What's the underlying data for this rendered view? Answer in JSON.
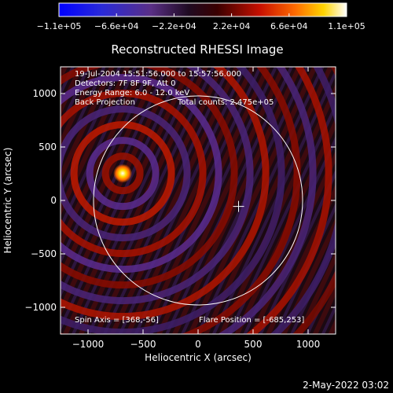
{
  "chart_data": {
    "type": "heatmap",
    "title": "Reconstructed RHESSI Image",
    "xlabel": "Heliocentric X (arcsec)",
    "ylabel": "Heliocentric Y (arcsec)",
    "xlim": [
      -1250,
      1250
    ],
    "ylim": [
      -1250,
      1250
    ],
    "x_ticks": [
      -1000,
      -500,
      0,
      500,
      1000
    ],
    "y_ticks": [
      -1000,
      -500,
      0,
      500,
      1000
    ],
    "x_tick_labels": [
      "−1000",
      "−500",
      "0",
      "500",
      "1000"
    ],
    "y_tick_labels": [
      "−1000",
      "−500",
      "0",
      "500",
      "1000"
    ],
    "colorbar": {
      "range": [
        -110000,
        110000
      ],
      "ticks": [
        -110000,
        -66000,
        -22000,
        22000,
        66000,
        110000
      ],
      "tick_labels": [
        "−1.1e+05",
        "−6.6e+04",
        "−2.2e+04",
        "2.2e+04",
        "6.6e+04",
        "1.1e+05"
      ]
    },
    "annotations": {
      "time_range": "19-Jul-2004 15:51:56.000 to 15:57:56.000",
      "detectors": "Detectors: 7F 8F 9F, Att 0",
      "energy_range": "Energy Range: 6.0 - 12.0 keV",
      "method": "Back Projection",
      "total_counts": "Total counts: 2.475e+05",
      "spin_axis": "Spin Axis = [368,-56]",
      "flare_position": "Flare Position = [-685,253]"
    },
    "flare_position": [
      -685,
      253
    ],
    "spin_axis": [
      368,
      -56
    ],
    "solar_limb_radius_arcsec": 950,
    "spin_axis_marker": "cross"
  },
  "footer": {
    "date_label": "2-May-2022 03:02"
  }
}
